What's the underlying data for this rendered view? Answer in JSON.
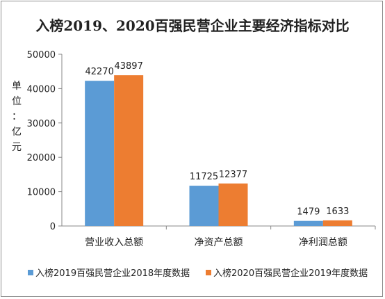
{
  "chart_data": {
    "type": "bar",
    "title": "入榜2019、2020百强民营企业主要经济指标对比",
    "ylabel": "单位：亿元",
    "xlabel": "",
    "categories": [
      "营业收入总额",
      "净资产总额",
      "净利润总额"
    ],
    "series": [
      {
        "name": "入榜2019百强民营企业2018年度数据",
        "values": [
          42270,
          11725,
          1479
        ],
        "color": "#5b9bd5"
      },
      {
        "name": "入榜2020百强民营企业2019年度数据",
        "values": [
          43897,
          12377,
          1633
        ],
        "color": "#ed7d31"
      }
    ],
    "ylim": [
      0,
      50000
    ],
    "yticks": [
      "0",
      "10000",
      "20000",
      "30000",
      "40000",
      "50000"
    ],
    "grid": false,
    "legend": "bottom"
  }
}
